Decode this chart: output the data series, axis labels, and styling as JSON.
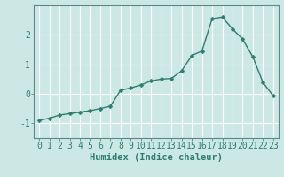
{
  "x": [
    0,
    1,
    2,
    3,
    4,
    5,
    6,
    7,
    8,
    9,
    10,
    11,
    12,
    13,
    14,
    15,
    16,
    17,
    18,
    19,
    20,
    21,
    22,
    23
  ],
  "y": [
    -0.9,
    -0.83,
    -0.72,
    -0.67,
    -0.62,
    -0.57,
    -0.5,
    -0.42,
    0.12,
    0.2,
    0.3,
    0.44,
    0.5,
    0.52,
    0.78,
    1.3,
    1.45,
    2.55,
    2.6,
    2.2,
    1.85,
    1.25,
    0.38,
    -0.07
  ],
  "line_color": "#2e7d6e",
  "marker": "D",
  "marker_size": 2.5,
  "background_color": "#cce8e5",
  "grid_color": "#ffffff",
  "xlabel": "Humidex (Indice chaleur)",
  "xlim": [
    -0.5,
    23.5
  ],
  "ylim": [
    -1.5,
    3.0
  ],
  "yticks": [
    -1,
    0,
    1,
    2
  ],
  "xticks": [
    0,
    1,
    2,
    3,
    4,
    5,
    6,
    7,
    8,
    9,
    10,
    11,
    12,
    13,
    14,
    15,
    16,
    17,
    18,
    19,
    20,
    21,
    22,
    23
  ],
  "xlabel_fontsize": 7.5,
  "tick_fontsize": 7,
  "line_width": 1.0,
  "spine_color": "#5a8a85",
  "tick_color": "#2e7d6e"
}
